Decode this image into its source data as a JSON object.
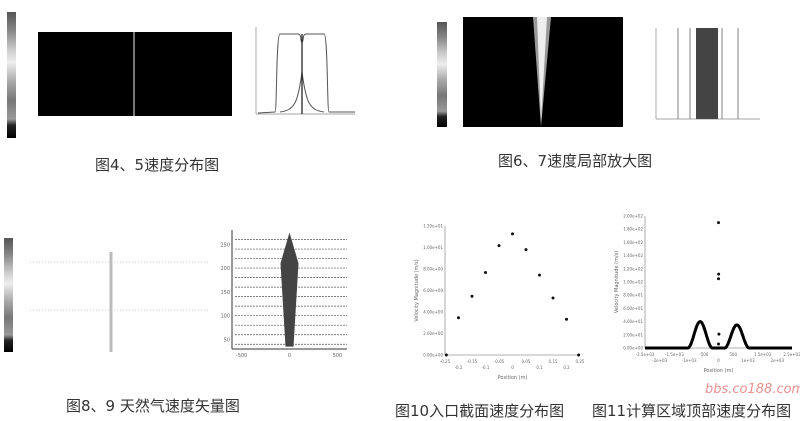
{
  "captions": {
    "fig4_5": "图4、5速度分布图",
    "fig6_7": "图6、7速度局部放大图",
    "fig8_9": "图8、9 天然气速度矢量图",
    "fig10": "图10入口截面速度分布图",
    "fig11": "图11计算区域顶部速度分布图"
  },
  "watermark": "bbs.co188.com",
  "colors": {
    "contour_bg": "#000000",
    "ink": "#111111"
  },
  "chart_data": [
    {
      "id": "fig9",
      "type": "vector",
      "xticks": [
        "-500",
        "0",
        "500"
      ],
      "yticks": [
        "50",
        "100",
        "150",
        "200",
        "250"
      ],
      "xlim": [
        -600,
        600
      ],
      "ylim": [
        30,
        280
      ]
    },
    {
      "id": "fig10",
      "type": "scatter",
      "xlabel": "Position (m)",
      "ylabel": "Velocity Magnitude (m/s)",
      "xlim": [
        -0.25,
        0.25
      ],
      "ylim": [
        0,
        12
      ],
      "xticks": [
        "-0.25",
        "-0.2",
        "-0.15",
        "-0.1",
        "-0.05",
        "0",
        "0.05",
        "0.1",
        "0.15",
        "0.2",
        "0.25"
      ],
      "yticks": [
        "0.00e+00",
        "2.00e+00",
        "4.00e+00",
        "6.00e+00",
        "8.00e+00",
        "1.00e+01",
        "1.20e+01"
      ],
      "x": [
        -0.245,
        -0.2,
        -0.15,
        -0.1,
        -0.05,
        0,
        0.05,
        0.1,
        0.15,
        0.2,
        0.245
      ],
      "y": [
        0,
        3.47,
        5.47,
        7.67,
        10.17,
        11.27,
        9.8,
        7.43,
        5.3,
        3.33,
        0
      ]
    },
    {
      "id": "fig11",
      "type": "scatter",
      "xlabel": "Position (m)",
      "ylabel": "Velocity Magnitude (m/s)",
      "xlim": [
        -2500,
        2500
      ],
      "ylim": [
        0,
        200
      ],
      "xticks": [
        "-2.5e+03",
        "-2e+03",
        "-1.5e+03",
        "-1e+03",
        "-500",
        "0",
        "500",
        "1e+03",
        "1.5e+03",
        "2e+03",
        "2.5e+03"
      ],
      "yticks": [
        "0.00e+00",
        "2.00e+01",
        "4.00e+01",
        "6.00e+01",
        "8.00e+01",
        "1.00e+02",
        "1.20e+02",
        "1.40e+02",
        "1.60e+02",
        "1.80e+02",
        "2.00e+02"
      ],
      "humps": [
        {
          "center": -625,
          "halfwidth": 420,
          "peak": 40
        },
        {
          "center": 625,
          "halfwidth": 420,
          "peak": 35
        }
      ],
      "points": {
        "x": [
          0,
          5,
          0,
          15,
          0
        ],
        "y": [
          190,
          112,
          105,
          21,
          6
        ]
      }
    }
  ]
}
